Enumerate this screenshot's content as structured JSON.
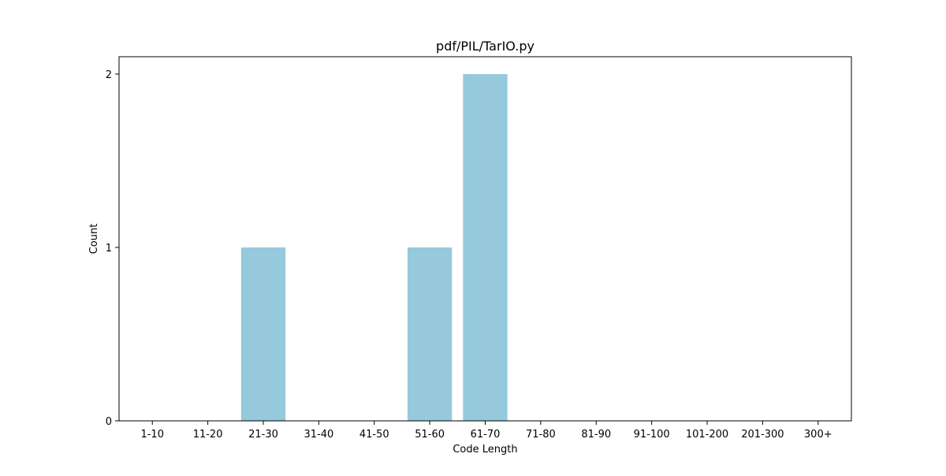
{
  "chart_data": {
    "type": "bar",
    "title": "pdf/PIL/TarIO.py",
    "xlabel": "Code Length",
    "ylabel": "Count",
    "categories": [
      "1-10",
      "11-20",
      "21-30",
      "31-40",
      "41-50",
      "51-60",
      "61-70",
      "71-80",
      "81-90",
      "91-100",
      "101-200",
      "201-300",
      "300+"
    ],
    "values": [
      0,
      0,
      1,
      0,
      0,
      1,
      2,
      0,
      0,
      0,
      0,
      0,
      0
    ],
    "ylim": [
      0,
      2.1
    ],
    "yticks": [
      0,
      1,
      2
    ],
    "bar_color": "#96c9dc",
    "grid": false,
    "legend": "none"
  }
}
